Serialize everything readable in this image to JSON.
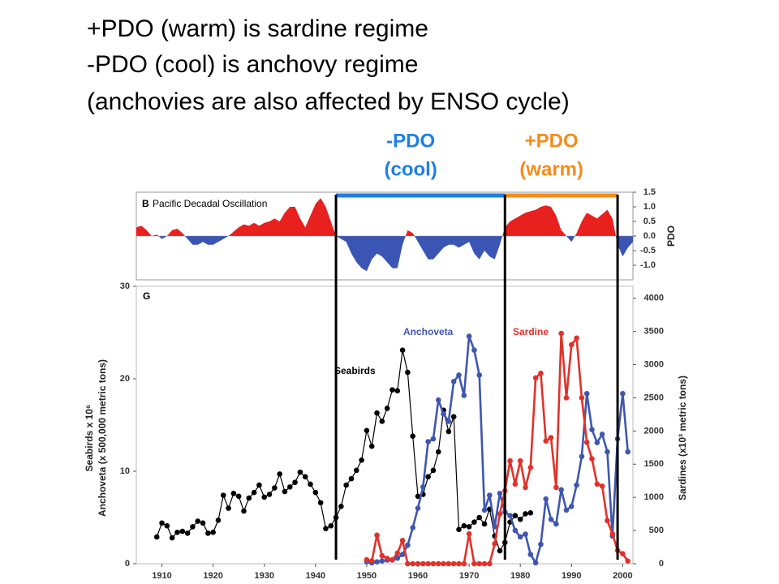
{
  "slide": {
    "lines": [
      "+PDO (warm) is sardine regime",
      "-PDO (cool) is anchovy regime",
      "(anchovies are also affected by ENSO cycle)"
    ]
  },
  "regimes": [
    {
      "label": [
        "-PDO",
        "(cool)"
      ],
      "start": 1944,
      "end": 1977,
      "color": "#1e7fe6"
    },
    {
      "label": [
        "+PDO",
        "(warm)"
      ],
      "start": 1977,
      "end": 1999,
      "color": "#f28c1c"
    }
  ],
  "chart_data": [
    {
      "type": "area",
      "panel": "B",
      "title": "Pacific Decadal Oscillation",
      "y2_label": "PDO",
      "positive_color": "#e8201e",
      "negative_color": "#3a55b4",
      "xlim": [
        1905,
        2002
      ],
      "ylim": [
        -1.5,
        1.5
      ],
      "yticks": [
        1.5,
        {
          "value": 1,
          "label": "1.0"
        },
        0.5,
        {
          "value": 0,
          "label": "0.0"
        },
        -0.5,
        {
          "value": -1,
          "label": "-1.0"
        }
      ],
      "x": [
        1905,
        1906,
        1907,
        1908,
        1909,
        1910,
        1911,
        1912,
        1913,
        1914,
        1915,
        1916,
        1917,
        1918,
        1919,
        1920,
        1921,
        1922,
        1923,
        1924,
        1925,
        1926,
        1927,
        1928,
        1929,
        1930,
        1931,
        1932,
        1933,
        1934,
        1935,
        1936,
        1937,
        1938,
        1939,
        1940,
        1941,
        1942,
        1943,
        1944,
        1945,
        1946,
        1947,
        1948,
        1949,
        1950,
        1951,
        1952,
        1953,
        1954,
        1955,
        1956,
        1957,
        1958,
        1959,
        1960,
        1961,
        1962,
        1963,
        1964,
        1965,
        1966,
        1967,
        1968,
        1969,
        1970,
        1971,
        1972,
        1973,
        1974,
        1975,
        1976,
        1977,
        1978,
        1979,
        1980,
        1981,
        1982,
        1983,
        1984,
        1985,
        1986,
        1987,
        1988,
        1989,
        1990,
        1991,
        1992,
        1993,
        1994,
        1995,
        1996,
        1997,
        1998,
        1999,
        2000,
        2001,
        2002
      ],
      "values": [
        0.3,
        0.35,
        0.2,
        0.0,
        0.05,
        -0.1,
        0.0,
        0.2,
        0.25,
        0.1,
        -0.1,
        -0.3,
        -0.3,
        -0.2,
        -0.3,
        -0.3,
        -0.2,
        -0.1,
        0.0,
        0.15,
        0.3,
        0.4,
        0.35,
        0.45,
        0.35,
        0.45,
        0.5,
        0.6,
        0.5,
        0.8,
        1.0,
        1.0,
        0.6,
        0.3,
        0.7,
        1.1,
        1.3,
        1.0,
        0.5,
        0.0,
        -0.1,
        -0.2,
        -0.6,
        -0.9,
        -1.1,
        -1.2,
        -0.8,
        -0.6,
        -0.7,
        -0.9,
        -1.1,
        -1.1,
        -0.3,
        0.2,
        0.1,
        -0.2,
        -0.5,
        -0.8,
        -0.8,
        -0.6,
        -0.4,
        -0.3,
        -0.3,
        -0.4,
        -0.3,
        -0.2,
        -0.6,
        -0.8,
        -0.5,
        -0.7,
        -0.8,
        -0.3,
        0.3,
        0.5,
        0.6,
        0.7,
        0.8,
        0.85,
        0.9,
        1.0,
        1.05,
        1.0,
        0.7,
        0.2,
        0.0,
        -0.2,
        0.1,
        0.5,
        0.8,
        0.7,
        0.6,
        0.75,
        0.9,
        0.6,
        -0.3,
        -0.7,
        -0.4,
        -0.2
      ]
    },
    {
      "type": "line",
      "panel": "G",
      "y_label": [
        "Seabirds x 10⁶",
        "Anchoveta (x 500,000 metric tons)"
      ],
      "y2_label": "Sardines (x10³ metric tons)",
      "xlim": [
        1905,
        2002
      ],
      "xticks": [
        1910,
        1920,
        1930,
        1940,
        1950,
        1960,
        1970,
        1980,
        1990,
        2000
      ],
      "ylim": [
        0,
        30
      ],
      "yticks": [
        0,
        10,
        20,
        30
      ],
      "y2lim": [
        0,
        4180
      ],
      "y2ticks": [
        0,
        500,
        1000,
        1500,
        2000,
        2500,
        3000,
        3500,
        4000
      ],
      "series": [
        {
          "name": "Seabirds",
          "color": "#000000",
          "x": [
            1909,
            1910,
            1911,
            1912,
            1913,
            1914,
            1915,
            1916,
            1917,
            1918,
            1919,
            1920,
            1921,
            1922,
            1923,
            1924,
            1925,
            1926,
            1927,
            1928,
            1929,
            1930,
            1931,
            1932,
            1933,
            1934,
            1935,
            1936,
            1937,
            1938,
            1939,
            1940,
            1941,
            1942,
            1943,
            1944,
            1945,
            1946,
            1947,
            1948,
            1949,
            1950,
            1951,
            1952,
            1953,
            1954,
            1955,
            1956,
            1957,
            1958,
            1959,
            1960,
            1961,
            1962,
            1963,
            1964,
            1965,
            1966,
            1967,
            1968,
            1969,
            1970,
            1971,
            1972,
            1973,
            1974,
            1975,
            1976,
            1977,
            1978,
            1979,
            1980,
            1981,
            1982
          ],
          "values": [
            2.9,
            4.4,
            4.1,
            2.8,
            3.4,
            3.5,
            3.3,
            4.0,
            4.6,
            4.4,
            3.3,
            3.4,
            4.7,
            7.4,
            6.0,
            7.6,
            7.3,
            5.7,
            7.1,
            7.7,
            8.5,
            7.2,
            7.5,
            8.2,
            9.7,
            7.8,
            8.3,
            8.8,
            9.9,
            9.4,
            8.6,
            7.7,
            6.6,
            3.8,
            4.1,
            5.0,
            6.2,
            8.5,
            9.2,
            10.1,
            11.2,
            14.4,
            12.7,
            16.3,
            15.4,
            16.8,
            18.8,
            18.7,
            23.1,
            20.7,
            13.8,
            7.3,
            7.5,
            9.4,
            10.1,
            12.1,
            16.6,
            14.3,
            15.9,
            3.7,
            4.1,
            4.0,
            4.5,
            5.0,
            4.3,
            5.9,
            3.0,
            1.4,
            2.3,
            4.5,
            5.2,
            4.8,
            5.4,
            5.5
          ]
        },
        {
          "name": "Anchoveta",
          "color": "#3f56b0",
          "x": [
            1950,
            1951,
            1952,
            1953,
            1954,
            1955,
            1956,
            1957,
            1958,
            1959,
            1960,
            1961,
            1962,
            1963,
            1964,
            1965,
            1966,
            1967,
            1968,
            1969,
            1970,
            1971,
            1972,
            1973,
            1974,
            1975,
            1976,
            1977,
            1978,
            1979,
            1980,
            1981,
            1982,
            1983,
            1984,
            1985,
            1986,
            1987,
            1988,
            1989,
            1990,
            1991,
            1992,
            1993,
            1994,
            1995,
            1996,
            1997,
            1998,
            1999,
            2000,
            2001
          ],
          "values": [
            0.2,
            0.1,
            0.2,
            0.3,
            0.4,
            0.4,
            0.6,
            1.0,
            2.0,
            3.9,
            6.0,
            8.3,
            13.2,
            13.5,
            17.7,
            16.2,
            15.4,
            19.7,
            20.4,
            18.2,
            24.6,
            23.1,
            20.4,
            5.8,
            7.4,
            4.0,
            7.6,
            5.6,
            5.2,
            3.6,
            2.9,
            3.2,
            1.0,
            0.1,
            2.1,
            7.0,
            4.8,
            4.3,
            8.0,
            5.8,
            6.2,
            8.5,
            11.6,
            18.4,
            14.5,
            13.1,
            14.0,
            12.1,
            3.0,
            13.5,
            18.4,
            12.1
          ]
        },
        {
          "name": "Sardine",
          "color": "#e0322a",
          "axis": "y2",
          "x": [
            1950,
            1951,
            1952,
            1953,
            1954,
            1955,
            1956,
            1957,
            1958,
            1959,
            1960,
            1961,
            1962,
            1963,
            1964,
            1965,
            1966,
            1967,
            1968,
            1969,
            1970,
            1971,
            1972,
            1973,
            1974,
            1975,
            1976,
            1977,
            1978,
            1979,
            1980,
            1981,
            1982,
            1983,
            1984,
            1985,
            1986,
            1987,
            1988,
            1989,
            1990,
            1991,
            1992,
            1993,
            1994,
            1995,
            1996,
            1997,
            1998,
            1999,
            2000,
            2001
          ],
          "values": [
            60,
            40,
            430,
            120,
            80,
            60,
            160,
            350,
            0,
            0,
            0,
            0,
            0,
            0,
            0,
            0,
            0,
            0,
            0,
            0,
            450,
            0,
            0,
            0,
            0,
            300,
            750,
            1100,
            1550,
            1200,
            1550,
            1150,
            1450,
            2800,
            2870,
            1850,
            1900,
            1150,
            3470,
            2500,
            3300,
            3400,
            2500,
            1830,
            1580,
            1200,
            1170,
            650,
            450,
            200,
            150,
            40
          ]
        }
      ]
    }
  ]
}
